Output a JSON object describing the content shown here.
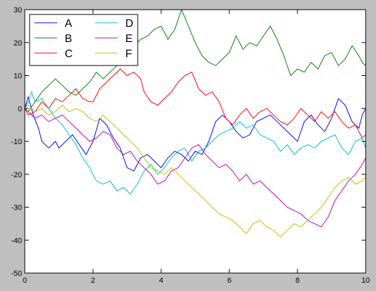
{
  "chart_data": {
    "type": "line",
    "title": "",
    "xlabel": "",
    "ylabel": "",
    "xlim": [
      0,
      10
    ],
    "ylim": [
      -50,
      30
    ],
    "xticks": [
      0,
      2,
      4,
      6,
      8,
      10
    ],
    "yticks": [
      -50,
      -40,
      -30,
      -20,
      -10,
      0,
      10,
      20,
      30
    ],
    "grid": false,
    "legend": {
      "placement": "top-left",
      "columns": 2
    },
    "series": [
      {
        "name": "A",
        "color": "#0000ff",
        "points": [
          [
            0,
            0
          ],
          [
            0.1,
            3.5
          ],
          [
            0.25,
            -2
          ],
          [
            0.4,
            -6
          ],
          [
            0.5,
            -10
          ],
          [
            0.7,
            -12
          ],
          [
            0.9,
            -10
          ],
          [
            1.0,
            -12
          ],
          [
            1.2,
            -10
          ],
          [
            1.4,
            -8
          ],
          [
            1.6,
            -11
          ],
          [
            1.8,
            -14
          ],
          [
            2.0,
            -10
          ],
          [
            2.2,
            -3
          ],
          [
            2.4,
            -5
          ],
          [
            2.6,
            -9
          ],
          [
            2.8,
            -12
          ],
          [
            3.0,
            -18
          ],
          [
            3.2,
            -19
          ],
          [
            3.4,
            -15
          ],
          [
            3.6,
            -14
          ],
          [
            3.8,
            -16
          ],
          [
            4.0,
            -18
          ],
          [
            4.2,
            -15
          ],
          [
            4.4,
            -13
          ],
          [
            4.6,
            -14
          ],
          [
            4.8,
            -16
          ],
          [
            5.0,
            -13
          ],
          [
            5.2,
            -14
          ],
          [
            5.4,
            -10
          ],
          [
            5.6,
            -4
          ],
          [
            5.8,
            -2
          ],
          [
            6.0,
            -4
          ],
          [
            6.2,
            -7
          ],
          [
            6.4,
            -9
          ],
          [
            6.6,
            -8
          ],
          [
            6.8,
            -4
          ],
          [
            7.0,
            -3
          ],
          [
            7.2,
            -2
          ],
          [
            7.4,
            -4
          ],
          [
            7.6,
            -6
          ],
          [
            7.8,
            -8
          ],
          [
            8.0,
            -10
          ],
          [
            8.2,
            -4
          ],
          [
            8.4,
            -2
          ],
          [
            8.6,
            -5
          ],
          [
            8.8,
            -7
          ],
          [
            9.0,
            -3
          ],
          [
            9.2,
            3
          ],
          [
            9.4,
            1
          ],
          [
            9.6,
            -4
          ],
          [
            9.8,
            -6
          ],
          [
            9.9,
            -2
          ],
          [
            10.0,
            0
          ]
        ]
      },
      {
        "name": "B",
        "color": "#008000",
        "points": [
          [
            0,
            0
          ],
          [
            0.1,
            -1
          ],
          [
            0.3,
            2
          ],
          [
            0.5,
            5
          ],
          [
            0.7,
            7
          ],
          [
            0.9,
            9
          ],
          [
            1.1,
            7
          ],
          [
            1.3,
            5
          ],
          [
            1.5,
            4
          ],
          [
            1.7,
            6
          ],
          [
            1.9,
            8
          ],
          [
            2.1,
            11
          ],
          [
            2.3,
            9
          ],
          [
            2.5,
            11
          ],
          [
            2.7,
            13
          ],
          [
            2.9,
            14
          ],
          [
            3.0,
            16
          ],
          [
            3.2,
            19
          ],
          [
            3.4,
            21
          ],
          [
            3.6,
            22
          ],
          [
            3.8,
            24
          ],
          [
            4.0,
            25
          ],
          [
            4.2,
            21
          ],
          [
            4.4,
            24
          ],
          [
            4.6,
            30
          ],
          [
            4.8,
            25
          ],
          [
            5.0,
            20
          ],
          [
            5.2,
            16
          ],
          [
            5.4,
            14
          ],
          [
            5.6,
            13
          ],
          [
            5.8,
            15
          ],
          [
            6.0,
            17
          ],
          [
            6.2,
            22
          ],
          [
            6.4,
            18
          ],
          [
            6.6,
            20
          ],
          [
            6.8,
            19
          ],
          [
            7.0,
            22
          ],
          [
            7.2,
            25
          ],
          [
            7.4,
            21
          ],
          [
            7.6,
            16
          ],
          [
            7.8,
            10
          ],
          [
            8.0,
            12
          ],
          [
            8.2,
            11
          ],
          [
            8.4,
            14
          ],
          [
            8.6,
            12
          ],
          [
            8.8,
            16
          ],
          [
            9.0,
            17
          ],
          [
            9.2,
            13
          ],
          [
            9.4,
            15
          ],
          [
            9.6,
            19
          ],
          [
            9.8,
            16
          ],
          [
            9.9,
            14
          ],
          [
            10.0,
            13
          ]
        ]
      },
      {
        "name": "C",
        "color": "#ff0000",
        "points": [
          [
            0,
            0
          ],
          [
            0.1,
            -2
          ],
          [
            0.3,
            -1
          ],
          [
            0.5,
            2
          ],
          [
            0.7,
            0
          ],
          [
            0.9,
            3
          ],
          [
            1.1,
            2
          ],
          [
            1.3,
            4
          ],
          [
            1.5,
            6
          ],
          [
            1.7,
            3
          ],
          [
            1.9,
            2
          ],
          [
            2.0,
            2
          ],
          [
            2.2,
            6
          ],
          [
            2.4,
            8
          ],
          [
            2.6,
            10
          ],
          [
            2.8,
            12
          ],
          [
            3.0,
            10
          ],
          [
            3.2,
            11
          ],
          [
            3.4,
            9
          ],
          [
            3.5,
            5
          ],
          [
            3.7,
            2
          ],
          [
            3.9,
            1
          ],
          [
            4.1,
            3
          ],
          [
            4.3,
            5
          ],
          [
            4.5,
            8
          ],
          [
            4.7,
            10
          ],
          [
            4.9,
            11
          ],
          [
            5.1,
            6
          ],
          [
            5.3,
            4
          ],
          [
            5.5,
            5
          ],
          [
            5.7,
            2
          ],
          [
            5.9,
            -3
          ],
          [
            6.1,
            -5
          ],
          [
            6.3,
            -2
          ],
          [
            6.5,
            0
          ],
          [
            6.7,
            -3
          ],
          [
            6.9,
            -1
          ],
          [
            7.1,
            0
          ],
          [
            7.3,
            -2
          ],
          [
            7.5,
            -4
          ],
          [
            7.7,
            -5
          ],
          [
            7.9,
            -3
          ],
          [
            8.1,
            0
          ],
          [
            8.3,
            -2
          ],
          [
            8.5,
            -4
          ],
          [
            8.7,
            -1
          ],
          [
            8.9,
            -3
          ],
          [
            9.1,
            -1
          ],
          [
            9.3,
            -4
          ],
          [
            9.5,
            -6
          ],
          [
            9.7,
            -5
          ],
          [
            9.9,
            -9
          ],
          [
            10.0,
            -8
          ]
        ]
      },
      {
        "name": "D",
        "color": "#00bfbf",
        "points": [
          [
            0,
            0
          ],
          [
            0.1,
            2
          ],
          [
            0.2,
            5
          ],
          [
            0.3,
            2
          ],
          [
            0.5,
            3
          ],
          [
            0.7,
            0
          ],
          [
            0.9,
            -3
          ],
          [
            1.1,
            -5
          ],
          [
            1.3,
            -8
          ],
          [
            1.5,
            -11
          ],
          [
            1.7,
            -15
          ],
          [
            1.9,
            -18
          ],
          [
            2.1,
            -22
          ],
          [
            2.3,
            -23
          ],
          [
            2.5,
            -22
          ],
          [
            2.7,
            -25
          ],
          [
            2.9,
            -24
          ],
          [
            3.1,
            -26
          ],
          [
            3.3,
            -23
          ],
          [
            3.5,
            -19
          ],
          [
            3.7,
            -17
          ],
          [
            3.9,
            -20
          ],
          [
            4.1,
            -18
          ],
          [
            4.3,
            -15
          ],
          [
            4.5,
            -13
          ],
          [
            4.7,
            -12
          ],
          [
            4.9,
            -16
          ],
          [
            5.1,
            -13
          ],
          [
            5.3,
            -12
          ],
          [
            5.5,
            -10
          ],
          [
            5.7,
            -8
          ],
          [
            5.9,
            -7
          ],
          [
            6.1,
            -6
          ],
          [
            6.3,
            -4
          ],
          [
            6.5,
            -6
          ],
          [
            6.7,
            -5
          ],
          [
            6.9,
            -8
          ],
          [
            7.1,
            -9
          ],
          [
            7.3,
            -10
          ],
          [
            7.5,
            -13
          ],
          [
            7.7,
            -11
          ],
          [
            7.9,
            -14
          ],
          [
            8.1,
            -12
          ],
          [
            8.3,
            -11
          ],
          [
            8.5,
            -12
          ],
          [
            8.7,
            -10
          ],
          [
            8.9,
            -9
          ],
          [
            9.1,
            -8
          ],
          [
            9.3,
            -12
          ],
          [
            9.5,
            -14
          ],
          [
            9.7,
            -10
          ],
          [
            9.9,
            -9
          ],
          [
            10.0,
            -12
          ]
        ]
      },
      {
        "name": "E",
        "color": "#bf00bf",
        "points": [
          [
            0,
            0
          ],
          [
            0.1,
            -1
          ],
          [
            0.3,
            -3
          ],
          [
            0.5,
            -2
          ],
          [
            0.7,
            -4
          ],
          [
            0.9,
            -3
          ],
          [
            1.1,
            -2
          ],
          [
            1.3,
            -4
          ],
          [
            1.5,
            -6
          ],
          [
            1.7,
            -8
          ],
          [
            1.9,
            -10
          ],
          [
            2.1,
            -9
          ],
          [
            2.3,
            -7
          ],
          [
            2.5,
            -8
          ],
          [
            2.7,
            -12
          ],
          [
            2.9,
            -14
          ],
          [
            3.1,
            -13
          ],
          [
            3.3,
            -16
          ],
          [
            3.5,
            -18
          ],
          [
            3.7,
            -20
          ],
          [
            3.9,
            -23
          ],
          [
            4.1,
            -22
          ],
          [
            4.3,
            -19
          ],
          [
            4.5,
            -18
          ],
          [
            4.7,
            -15
          ],
          [
            4.9,
            -12
          ],
          [
            5.1,
            -11
          ],
          [
            5.3,
            -14
          ],
          [
            5.5,
            -16
          ],
          [
            5.7,
            -18
          ],
          [
            5.9,
            -17
          ],
          [
            6.1,
            -19
          ],
          [
            6.3,
            -22
          ],
          [
            6.5,
            -20
          ],
          [
            6.7,
            -23
          ],
          [
            6.9,
            -22
          ],
          [
            7.1,
            -24
          ],
          [
            7.3,
            -26
          ],
          [
            7.5,
            -28
          ],
          [
            7.7,
            -30
          ],
          [
            7.9,
            -31
          ],
          [
            8.1,
            -32
          ],
          [
            8.3,
            -34
          ],
          [
            8.5,
            -35
          ],
          [
            8.7,
            -36
          ],
          [
            8.9,
            -33
          ],
          [
            9.1,
            -28
          ],
          [
            9.3,
            -25
          ],
          [
            9.5,
            -22
          ],
          [
            9.7,
            -20
          ],
          [
            9.9,
            -17
          ],
          [
            10.0,
            -15
          ]
        ]
      },
      {
        "name": "F",
        "color": "#bfbf00",
        "points": [
          [
            0,
            0
          ],
          [
            0.1,
            1
          ],
          [
            0.3,
            -1
          ],
          [
            0.5,
            0
          ],
          [
            0.7,
            -2
          ],
          [
            0.9,
            -1
          ],
          [
            1.1,
            1
          ],
          [
            1.3,
            -1
          ],
          [
            1.5,
            0
          ],
          [
            1.7,
            -1
          ],
          [
            1.9,
            -3
          ],
          [
            2.1,
            -4
          ],
          [
            2.3,
            -2
          ],
          [
            2.5,
            -4
          ],
          [
            2.7,
            -6
          ],
          [
            2.9,
            -8
          ],
          [
            3.1,
            -10
          ],
          [
            3.3,
            -12
          ],
          [
            3.5,
            -15
          ],
          [
            3.7,
            -18
          ],
          [
            3.9,
            -19
          ],
          [
            4.1,
            -20
          ],
          [
            4.3,
            -18
          ],
          [
            4.5,
            -20
          ],
          [
            4.7,
            -22
          ],
          [
            4.9,
            -24
          ],
          [
            5.1,
            -26
          ],
          [
            5.3,
            -28
          ],
          [
            5.5,
            -30
          ],
          [
            5.7,
            -32
          ],
          [
            5.9,
            -33
          ],
          [
            6.1,
            -34
          ],
          [
            6.3,
            -36
          ],
          [
            6.5,
            -38
          ],
          [
            6.7,
            -35
          ],
          [
            6.9,
            -34
          ],
          [
            7.1,
            -36
          ],
          [
            7.3,
            -37
          ],
          [
            7.5,
            -39
          ],
          [
            7.7,
            -37
          ],
          [
            7.9,
            -35
          ],
          [
            8.1,
            -36
          ],
          [
            8.3,
            -34
          ],
          [
            8.5,
            -32
          ],
          [
            8.7,
            -30
          ],
          [
            8.9,
            -27
          ],
          [
            9.1,
            -24
          ],
          [
            9.3,
            -22
          ],
          [
            9.5,
            -21
          ],
          [
            9.7,
            -23
          ],
          [
            9.9,
            -22
          ],
          [
            10.0,
            -21
          ]
        ]
      }
    ]
  }
}
